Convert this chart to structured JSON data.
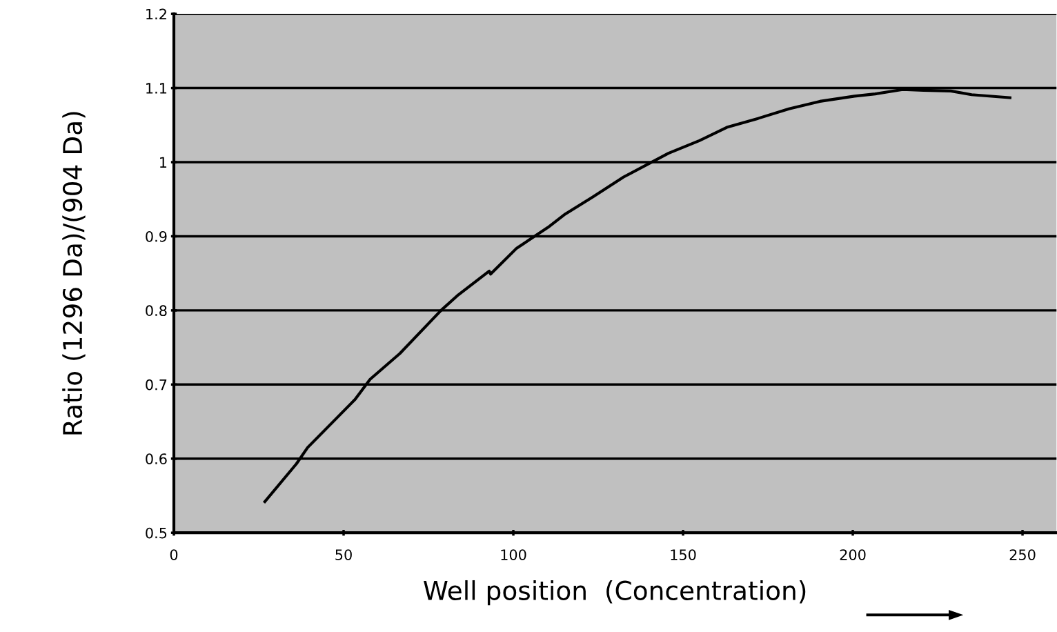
{
  "chart_data": {
    "type": "line",
    "xlabel": "Well position  (Concentration)",
    "ylabel": "Ratio (1296 Da)/(904 Da)",
    "xlim": [
      0,
      260
    ],
    "xticks": [
      0,
      50,
      100,
      150,
      200,
      250
    ],
    "ylim": [
      0.5,
      1.2
    ],
    "yticks": [
      0.5,
      0.6,
      0.7,
      0.8,
      0.9,
      1,
      1.1,
      1.2
    ],
    "grid": "y",
    "marker": "none",
    "line_style": "solid",
    "series": [
      {
        "color": "#000000",
        "x": [
          26.8,
          36.1,
          39.4,
          53.4,
          57.8,
          66.6,
          78.7,
          83.8,
          92.9,
          93.3,
          101,
          110.2,
          115.3,
          123.4,
          132.5,
          145.7,
          154.8,
          162.9,
          172.1,
          181.2,
          190.3,
          200.5,
          206.6,
          214.7,
          220.8,
          228.9,
          235,
          246.3
        ],
        "values": [
          0.542,
          0.593,
          0.615,
          0.68,
          0.707,
          0.742,
          0.8,
          0.821,
          0.853,
          0.849,
          0.884,
          0.912,
          0.93,
          0.953,
          0.98,
          1.012,
          1.029,
          1.047,
          1.059,
          1.072,
          1.082,
          1.089,
          1.092,
          1.098,
          1.097,
          1.096,
          1.091,
          1.087
        ]
      }
    ]
  }
}
